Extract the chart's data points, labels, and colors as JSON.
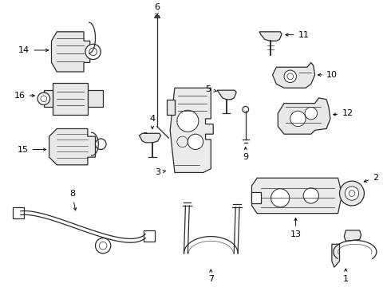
{
  "background_color": "#ffffff",
  "line_color": "#2a2a2a",
  "fig_width": 4.9,
  "fig_height": 3.6,
  "dpi": 100,
  "components": {
    "label_fontsize": 8,
    "arrow_lw": 0.7,
    "part_lw": 0.9
  }
}
